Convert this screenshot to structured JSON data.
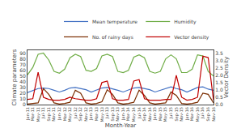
{
  "chart_data": {
    "type": "line",
    "xlabel": "Month-Year",
    "ylabel": "Climate parameters",
    "y2label": "Vector Density",
    "categories": [
      "Jan-11",
      "Mar-11",
      "May-11",
      "Jul-11",
      "Sep-11",
      "Nov-11",
      "Jan-12",
      "Mar-12",
      "May-12",
      "Jul-12",
      "Sep-12",
      "Nov-12",
      "Jan-13",
      "Mar-13",
      "May-13",
      "Jul-13",
      "Sep-13",
      "Nov-13",
      "Jan-14",
      "Mar-14",
      "May-14",
      "Jul-14",
      "Sep-14",
      "Nov-14",
      "Jan-15",
      "Mar-15",
      "May-15",
      "Jul-15",
      "Sep-15",
      "Nov-15",
      "Jan-16",
      "Mar-16",
      "May-16",
      "Jul-16",
      "Sep-16",
      "Nov-16"
    ],
    "series": [
      {
        "name": "Mean temperature",
        "color": "#4472c4",
        "values": [
          21,
          24,
          28,
          29,
          28,
          25,
          22,
          25,
          29,
          30,
          28,
          26,
          22,
          25,
          29,
          30,
          28,
          25,
          22,
          26,
          29,
          30,
          28,
          26,
          22,
          25,
          29,
          31,
          28,
          26,
          22,
          26,
          30,
          31,
          27,
          25
        ]
      },
      {
        "name": "Humidity",
        "color": "#70ad47",
        "values": [
          52,
          65,
          88,
          90,
          78,
          58,
          55,
          62,
          82,
          88,
          84,
          60,
          58,
          63,
          85,
          88,
          84,
          58,
          56,
          60,
          83,
          87,
          82,
          58,
          55,
          58,
          80,
          87,
          80,
          56,
          56,
          62,
          87,
          85,
          58,
          50
        ]
      },
      {
        "name": "No. of rainy days",
        "color": "#7b2d00",
        "values": [
          1,
          2,
          3,
          28,
          18,
          3,
          1,
          2,
          4,
          25,
          20,
          3,
          1,
          2,
          5,
          26,
          18,
          3,
          1,
          2,
          4,
          25,
          16,
          3,
          1,
          2,
          3,
          22,
          16,
          2,
          1,
          2,
          4,
          20,
          18,
          3
        ]
      },
      {
        "name": "Vector density",
        "color": "#c00000",
        "axis": "y2",
        "values": [
          0.35,
          0.4,
          2.2,
          0.5,
          0.35,
          0.3,
          0.3,
          0.35,
          0.5,
          0.4,
          0.35,
          0.3,
          0.3,
          0.4,
          1.5,
          1.6,
          0.4,
          0.3,
          0.3,
          0.35,
          1.6,
          1.7,
          0.4,
          0.3,
          0.3,
          0.3,
          0.35,
          0.35,
          2.0,
          0.5,
          0.3,
          0.35,
          0.5,
          3.3,
          3.2,
          0.3
        ]
      }
    ],
    "ylim": [
      0,
      95
    ],
    "yticks": [
      0,
      10,
      20,
      30,
      40,
      50,
      60,
      70,
      80,
      90
    ],
    "y2lim": [
      0,
      3.7
    ],
    "y2ticks": [
      {
        "value": 0,
        "label": "0.0"
      },
      0.5,
      {
        "value": 1.0,
        "label": "1.0"
      },
      1.5,
      {
        "value": 2.0,
        "label": "2.0"
      },
      2.5,
      {
        "value": 3.0,
        "label": "3.0"
      },
      3.5
    ],
    "grid": false,
    "legend": "upper right"
  }
}
